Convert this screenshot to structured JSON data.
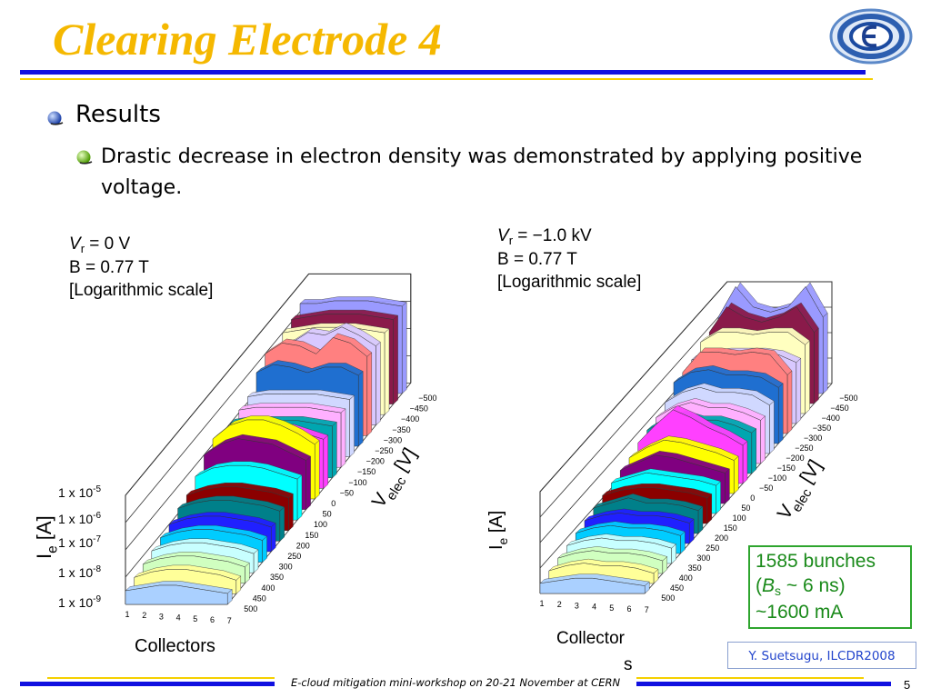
{
  "slide": {
    "title": "Clearing Electrode 4",
    "bullet_1": "Results",
    "bullet_2": "Drastic decrease in electron density was demonstrated by applying positive voltage.",
    "page_number": "5",
    "footer": "E-cloud mitigation mini-workshop on 20-21 November at CERN",
    "credit": "Y. Suetsugu, ILCDR2008"
  },
  "left_plot": {
    "cond_vr_symbol": "V",
    "cond_vr_sub": "r",
    "cond_vr_value": " = 0 V",
    "cond_b": "B = 0.77 T",
    "cond_scale": "[Logarithmic scale]",
    "y_ticks": [
      "1 x 10-5",
      "1 x 10-6",
      "1 x 10-7",
      "1 x 10-8",
      "1 x 10-9"
    ],
    "y_label": "Ie [A]",
    "x_label": "Collectors",
    "x_ticks": [
      "1",
      "2",
      "3",
      "4",
      "5",
      "6",
      "7"
    ],
    "z_label": "Velec [V]",
    "z_ticks": [
      "−500",
      "−450",
      "−400",
      "−350",
      "−300",
      "−250",
      "−200",
      "−150",
      "−100",
      "−50",
      "0",
      "50",
      "100",
      "150",
      "200",
      "250",
      "300",
      "350",
      "400",
      "450",
      "500"
    ]
  },
  "right_plot": {
    "cond_vr_symbol": "V",
    "cond_vr_sub": "r",
    "cond_vr_value": " = −1.0 kV",
    "cond_b": "B = 0.77 T",
    "cond_scale": "[Logarithmic scale]",
    "y_label": "Ie [A]",
    "x_label_1": "Collector",
    "x_label_2": "s",
    "x_ticks": [
      "1",
      "2",
      "3",
      "4",
      "5",
      "6",
      "7"
    ],
    "z_label": "Velec [V]",
    "z_ticks": [
      "−500",
      "−450",
      "−400",
      "−350",
      "−300",
      "−250",
      "−200",
      "−150",
      "−100",
      "−50",
      "0",
      "50",
      "100",
      "150",
      "200",
      "250",
      "300",
      "350",
      "400",
      "450",
      "500"
    ]
  },
  "info_box": {
    "line_1": "1585 bunches",
    "line_2_pre": "(",
    "line_2_sym": "B",
    "line_2_sub": "s",
    "line_2_post": " ~ 6 ns)",
    "line_3": "~1600 mA"
  },
  "colors": {
    "title": "#f5b800",
    "rule_blue": "#1010e0",
    "rule_yellow": "#f5d000",
    "box_border": "#2ea52e",
    "credit_text": "#2244cc"
  },
  "chart_data": [
    {
      "type": "area",
      "title": "",
      "xlabel": "Collectors",
      "ylabel": "Ie [A]",
      "zlabel": "Velec [V]",
      "x": [
        1,
        2,
        3,
        4,
        5,
        6,
        7
      ],
      "ylim_log10": [
        -9,
        -5
      ],
      "series": [
        {
          "velec": -500,
          "log10_ie": [
            -5.7,
            -5.7,
            -5.6,
            -5.6,
            -5.6,
            -5.7,
            -5.8
          ]
        },
        {
          "velec": -450,
          "log10_ie": [
            -5.9,
            -5.8,
            -5.7,
            -5.7,
            -5.7,
            -5.8,
            -5.9
          ]
        },
        {
          "velec": -400,
          "log10_ie": [
            -6.0,
            -5.9,
            -5.8,
            -5.8,
            -5.8,
            -5.9,
            -6.0
          ]
        },
        {
          "velec": -350,
          "log10_ie": [
            -6.2,
            -6.0,
            -5.6,
            -5.7,
            -5.4,
            -5.7,
            -6.1
          ]
        },
        {
          "velec": -300,
          "log10_ie": [
            -6.0,
            -5.6,
            -5.7,
            -6.0,
            -5.4,
            -5.6,
            -6.1
          ]
        },
        {
          "velec": -250,
          "log10_ie": [
            -6.3,
            -6.0,
            -6.1,
            -6.3,
            -6.1,
            -6.1,
            -6.4
          ]
        },
        {
          "velec": -200,
          "log10_ie": [
            -6.8,
            -6.7,
            -6.7,
            -6.7,
            -6.7,
            -6.8,
            -6.9
          ]
        },
        {
          "velec": -150,
          "log10_ie": [
            -6.9,
            -6.8,
            -6.8,
            -6.8,
            -6.8,
            -6.9,
            -7.0
          ]
        },
        {
          "velec": -100,
          "log10_ie": [
            -7.0,
            -6.9,
            -6.9,
            -6.9,
            -6.9,
            -7.0,
            -7.1
          ]
        },
        {
          "velec": -50,
          "log10_ie": [
            -7.1,
            -6.7,
            -6.7,
            -6.8,
            -6.8,
            -7.0,
            -7.2
          ]
        },
        {
          "velec": 0,
          "log10_ie": [
            -6.8,
            -6.3,
            -6.1,
            -6.1,
            -6.3,
            -6.6,
            -7.0
          ]
        },
        {
          "velec": 50,
          "log10_ie": [
            -7.0,
            -6.6,
            -6.4,
            -6.5,
            -6.6,
            -6.9,
            -7.2
          ]
        },
        {
          "velec": 100,
          "log10_ie": [
            -7.4,
            -7.1,
            -7.0,
            -7.0,
            -7.1,
            -7.3,
            -7.5
          ]
        },
        {
          "velec": 150,
          "log10_ie": [
            -7.7,
            -7.5,
            -7.4,
            -7.4,
            -7.5,
            -7.6,
            -7.8
          ]
        },
        {
          "velec": 200,
          "log10_ie": [
            -7.8,
            -7.6,
            -7.5,
            -7.5,
            -7.6,
            -7.7,
            -7.9
          ]
        },
        {
          "velec": 250,
          "log10_ie": [
            -8.0,
            -7.8,
            -7.7,
            -7.7,
            -7.8,
            -7.9,
            -8.1
          ]
        },
        {
          "velec": 300,
          "log10_ie": [
            -8.1,
            -7.9,
            -7.8,
            -7.8,
            -7.9,
            -8.0,
            -8.2
          ]
        },
        {
          "velec": 350,
          "log10_ie": [
            -8.2,
            -8.0,
            -7.9,
            -7.9,
            -8.0,
            -8.1,
            -8.3
          ]
        },
        {
          "velec": 400,
          "log10_ie": [
            -8.3,
            -8.1,
            -8.0,
            -8.0,
            -8.1,
            -8.2,
            -8.4
          ]
        },
        {
          "velec": 450,
          "log10_ie": [
            -8.4,
            -8.2,
            -8.1,
            -8.1,
            -8.2,
            -8.3,
            -8.5
          ]
        },
        {
          "velec": 500,
          "log10_ie": [
            -8.5,
            -8.4,
            -8.3,
            -8.3,
            -8.4,
            -8.5,
            -8.6
          ]
        }
      ]
    },
    {
      "type": "area",
      "title": "",
      "xlabel": "Collectors",
      "ylabel": "Ie [A]",
      "zlabel": "Velec [V]",
      "x": [
        1,
        2,
        3,
        4,
        5,
        6,
        7
      ],
      "ylim_log10": [
        -9,
        -5
      ],
      "series": [
        {
          "velec": -500,
          "log10_ie": [
            -6.0,
            -4.8,
            -5.6,
            -5.8,
            -5.6,
            -4.8,
            -6.0
          ]
        },
        {
          "velec": -450,
          "log10_ie": [
            -6.2,
            -5.2,
            -5.6,
            -5.8,
            -5.6,
            -5.2,
            -6.2
          ]
        },
        {
          "velec": -400,
          "log10_ie": [
            -6.2,
            -5.8,
            -5.8,
            -5.9,
            -5.8,
            -5.8,
            -6.3
          ]
        },
        {
          "velec": -350,
          "log10_ie": [
            -6.5,
            -6.3,
            -6.2,
            -6.2,
            -6.2,
            -6.3,
            -6.6
          ]
        },
        {
          "velec": -300,
          "log10_ie": [
            -6.6,
            -5.8,
            -5.8,
            -5.9,
            -5.8,
            -5.9,
            -6.7
          ]
        },
        {
          "velec": -250,
          "log10_ie": [
            -6.6,
            -6.2,
            -6.1,
            -6.3,
            -6.3,
            -6.4,
            -6.8
          ]
        },
        {
          "velec": -200,
          "log10_ie": [
            -7.0,
            -6.6,
            -6.4,
            -6.6,
            -6.6,
            -6.7,
            -7.1
          ]
        },
        {
          "velec": -150,
          "log10_ie": [
            -7.2,
            -6.8,
            -6.6,
            -6.8,
            -6.8,
            -7.0,
            -7.3
          ]
        },
        {
          "velec": -100,
          "log10_ie": [
            -7.3,
            -6.9,
            -6.7,
            -6.9,
            -6.9,
            -7.1,
            -7.4
          ]
        },
        {
          "velec": -50,
          "log10_ie": [
            -7.4,
            -6.7,
            -6.1,
            -6.4,
            -6.8,
            -7.1,
            -7.5
          ]
        },
        {
          "velec": 0,
          "log10_ie": [
            -7.6,
            -7.2,
            -6.9,
            -7.0,
            -7.2,
            -7.4,
            -7.7
          ]
        },
        {
          "velec": 50,
          "log10_ie": [
            -7.7,
            -7.4,
            -7.1,
            -7.2,
            -7.4,
            -7.6,
            -7.8
          ]
        },
        {
          "velec": 100,
          "log10_ie": [
            -7.8,
            -7.6,
            -7.4,
            -7.5,
            -7.6,
            -7.7,
            -7.9
          ]
        },
        {
          "velec": 150,
          "log10_ie": [
            -7.9,
            -7.7,
            -7.6,
            -7.6,
            -7.7,
            -7.8,
            -8.0
          ]
        },
        {
          "velec": 200,
          "log10_ie": [
            -8.0,
            -7.8,
            -7.6,
            -7.8,
            -7.8,
            -7.9,
            -8.1
          ]
        },
        {
          "velec": 250,
          "log10_ie": [
            -8.1,
            -7.9,
            -7.8,
            -7.9,
            -7.9,
            -8.0,
            -8.2
          ]
        },
        {
          "velec": 300,
          "log10_ie": [
            -8.2,
            -8.0,
            -7.9,
            -8.0,
            -8.0,
            -8.1,
            -8.3
          ]
        },
        {
          "velec": 350,
          "log10_ie": [
            -8.3,
            -8.1,
            -8.0,
            -8.1,
            -8.1,
            -8.2,
            -8.4
          ]
        },
        {
          "velec": 400,
          "log10_ie": [
            -8.4,
            -8.2,
            -8.1,
            -8.2,
            -8.2,
            -8.3,
            -8.5
          ]
        },
        {
          "velec": 450,
          "log10_ie": [
            -8.5,
            -8.3,
            -8.2,
            -8.3,
            -8.3,
            -8.4,
            -8.6
          ]
        },
        {
          "velec": 500,
          "log10_ie": [
            -8.6,
            -8.5,
            -8.4,
            -8.4,
            -8.5,
            -8.6,
            -8.7
          ]
        }
      ]
    }
  ]
}
